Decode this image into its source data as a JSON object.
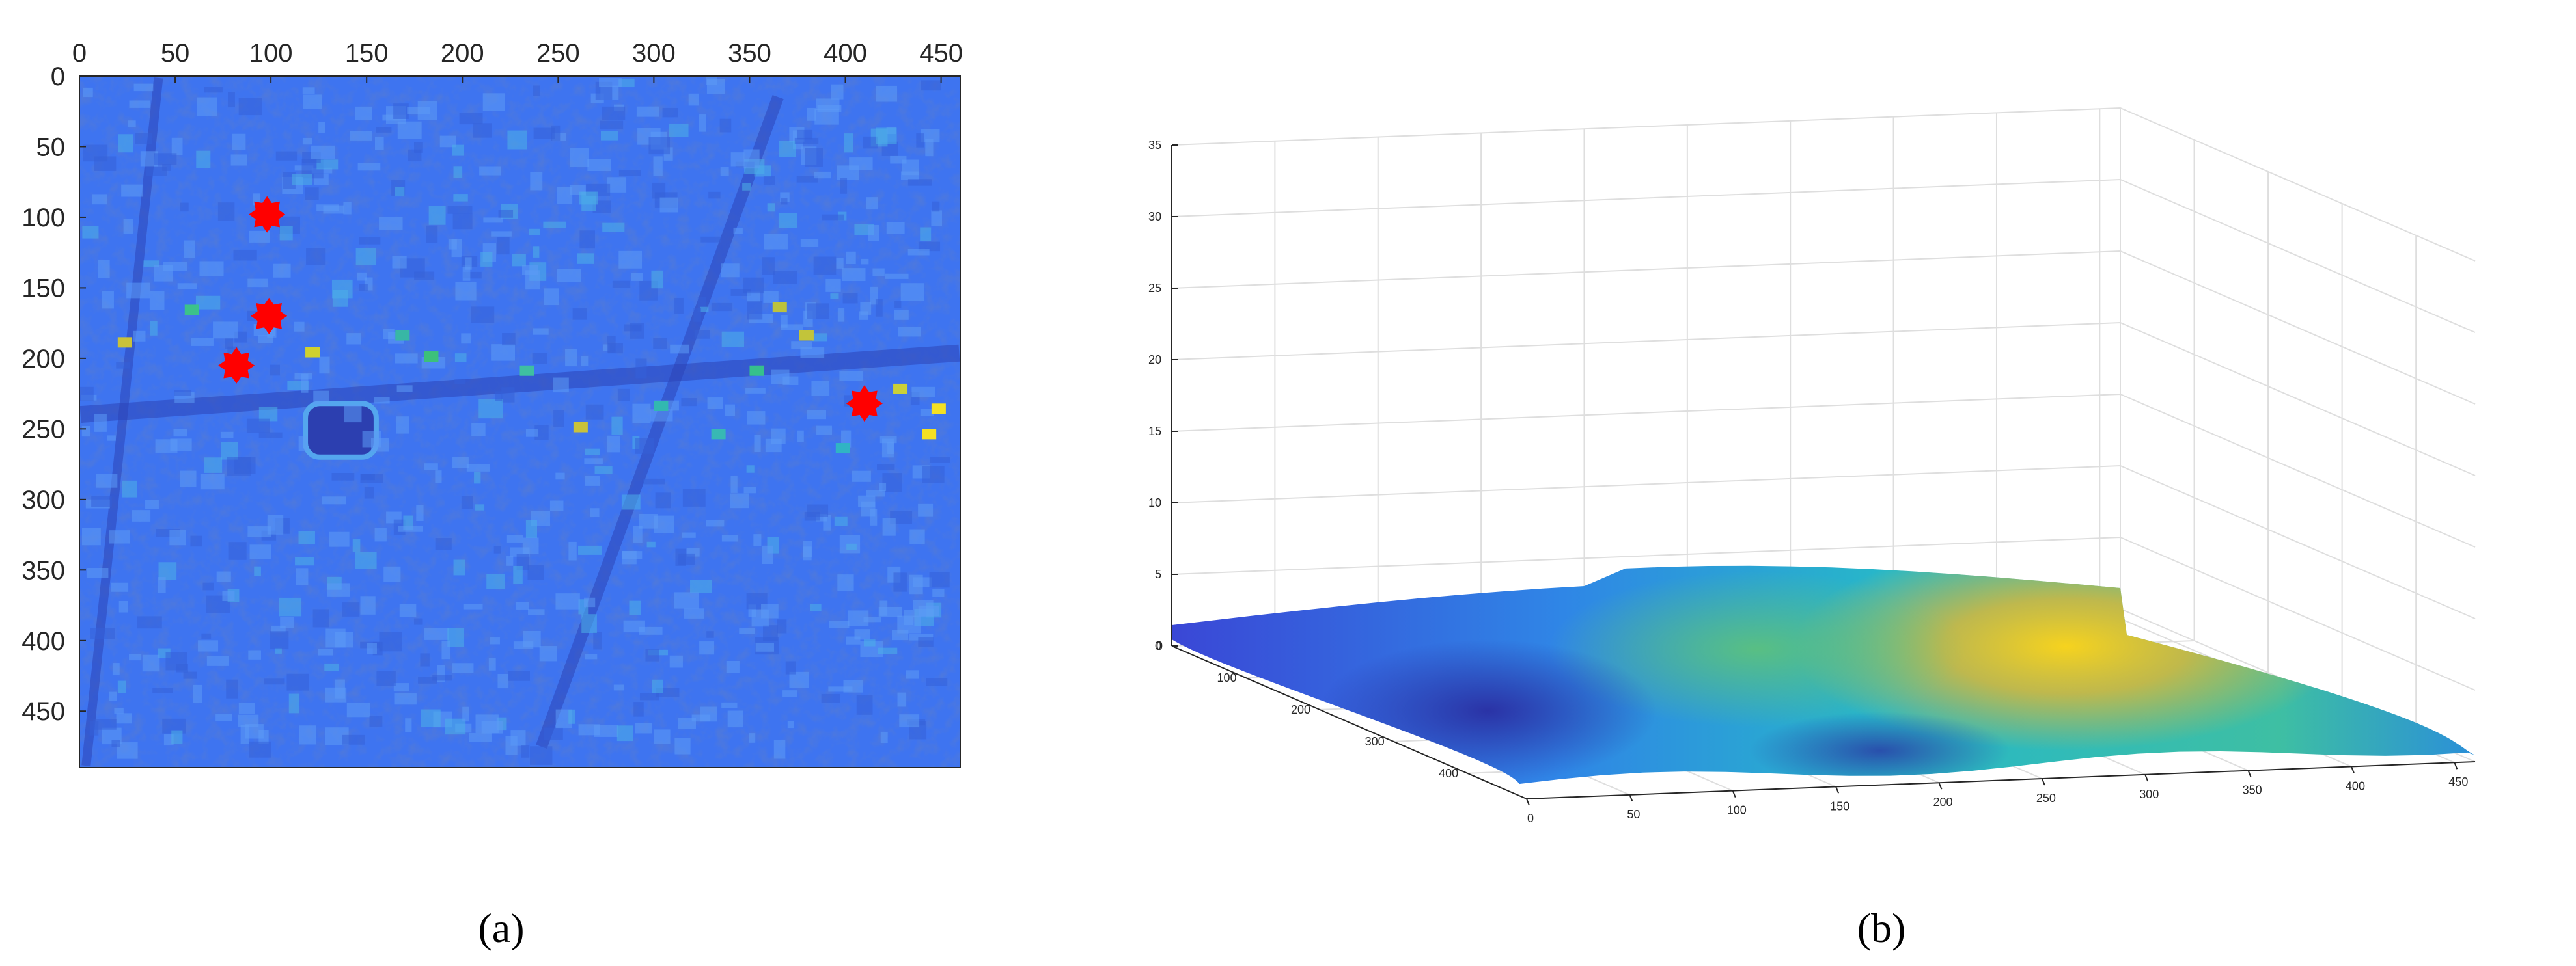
{
  "chart_data": [
    {
      "type": "heatmap",
      "panel_label": "(a)",
      "xlim": [
        0,
        460
      ],
      "ylim": [
        0,
        490
      ],
      "x_ticks": [
        0,
        50,
        100,
        150,
        200,
        250,
        300,
        350,
        400,
        450
      ],
      "y_ticks": [
        0,
        50,
        100,
        150,
        200,
        250,
        300,
        350,
        400,
        450
      ],
      "x_axis_position": "top",
      "y_axis_direction": "reversed",
      "colormap": "parula",
      "colors": {
        "background": "#3e74f0",
        "marker": "#ff0000"
      },
      "markers": [
        {
          "x": 98,
          "y": 98
        },
        {
          "x": 99,
          "y": 170
        },
        {
          "x": 82,
          "y": 205
        },
        {
          "x": 410,
          "y": 232
        }
      ]
    },
    {
      "type": "surface",
      "panel_label": "(b)",
      "x_ticks": [
        0,
        50,
        100,
        150,
        200,
        250,
        300,
        350,
        400,
        450
      ],
      "y_ticks": [
        0,
        100,
        200,
        300,
        400
      ],
      "z_ticks": [
        0,
        5,
        10,
        15,
        20,
        25,
        30,
        35
      ],
      "zlim": [
        0,
        35
      ],
      "grid": true,
      "colormap": "parula"
    }
  ]
}
